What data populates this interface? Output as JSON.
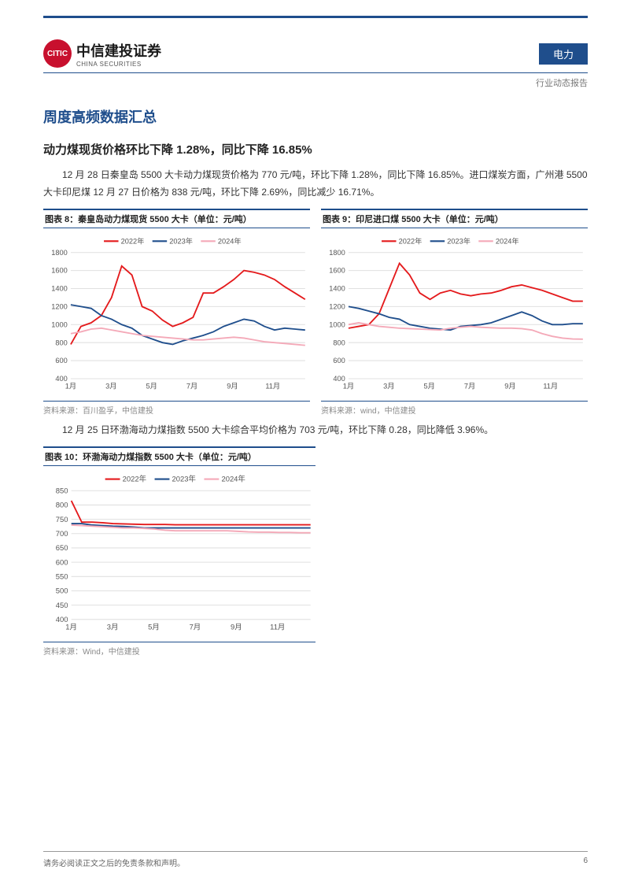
{
  "header": {
    "company_cn": "中信建投证券",
    "company_en": "CHINA SECURITIES",
    "category": "电力",
    "doc_type": "行业动态报告"
  },
  "section_title": "周度高频数据汇总",
  "sub_title": "动力煤现货价格环比下降 1.28%，同比下降 16.85%",
  "para1": "12 月 28 日秦皇岛 5500 大卡动力煤现货价格为 770 元/吨，环比下降 1.28%，同比下降 16.85%。进口煤炭方面，广州港 5500 大卡印尼煤 12 月 27 日价格为 838 元/吨，环比下降 2.69%，同比减少 16.71%。",
  "para2": "12 月 25 日环渤海动力煤指数 5500 大卡综合平均价格为 703 元/吨，环比下降 0.28，同比降低 3.96%。",
  "legend_labels": [
    "2022年",
    "2023年",
    "2024年"
  ],
  "colors": {
    "y2022": "#e41a1c",
    "y2023": "#1f4e8c",
    "y2024": "#f4a9b8",
    "grid": "#e0e0e0",
    "axis": "#555555",
    "chart_border": "#1f4e8c"
  },
  "x_labels": [
    "1月",
    "3月",
    "5月",
    "7月",
    "9月",
    "11月"
  ],
  "chart8": {
    "caption": "图表 8：秦皇岛动力煤现货 5500 大卡（单位：元/吨）",
    "source": "资料来源：百川盈孚，中信建投",
    "type": "line",
    "ylim": [
      400,
      1800
    ],
    "ytick_step": 200,
    "y2022": [
      780,
      980,
      1020,
      1100,
      1300,
      1650,
      1550,
      1200,
      1150,
      1050,
      980,
      1020,
      1080,
      1350,
      1350,
      1420,
      1500,
      1600,
      1580,
      1550,
      1500,
      1420,
      1350,
      1280
    ],
    "y2023": [
      1220,
      1200,
      1180,
      1100,
      1060,
      1000,
      960,
      880,
      840,
      800,
      780,
      820,
      850,
      880,
      920,
      980,
      1020,
      1060,
      1040,
      980,
      940,
      960,
      950,
      940
    ],
    "y2024": [
      900,
      920,
      950,
      960,
      940,
      920,
      900,
      880,
      870,
      860,
      850,
      840,
      830,
      830,
      840,
      850,
      860,
      850,
      830,
      810,
      800,
      790,
      780,
      770
    ]
  },
  "chart9": {
    "caption": "图表 9：印尼进口煤 5500 大卡（单位：元/吨）",
    "source": "资料来源：wind，中信建投",
    "type": "line",
    "ylim": [
      400,
      1800
    ],
    "ytick_step": 200,
    "y2022": [
      960,
      980,
      1000,
      1120,
      1400,
      1680,
      1550,
      1350,
      1280,
      1350,
      1380,
      1340,
      1320,
      1340,
      1350,
      1380,
      1420,
      1440,
      1410,
      1380,
      1340,
      1300,
      1260,
      1260
    ],
    "y2023": [
      1200,
      1180,
      1150,
      1120,
      1080,
      1060,
      1000,
      980,
      960,
      950,
      940,
      980,
      990,
      1000,
      1020,
      1060,
      1100,
      1140,
      1100,
      1040,
      1000,
      1000,
      1010,
      1010
    ],
    "y2024": [
      1000,
      1020,
      1000,
      980,
      970,
      960,
      955,
      950,
      945,
      940,
      960,
      970,
      980,
      970,
      965,
      960,
      960,
      955,
      940,
      900,
      870,
      850,
      840,
      838
    ]
  },
  "chart10": {
    "caption": "图表 10：环渤海动力煤指数 5500 大卡（单位：元/吨）",
    "source": "资料来源：Wind，中信建投",
    "type": "line",
    "ylim": [
      400,
      850
    ],
    "ytick_step": 50,
    "y2022": [
      815,
      740,
      740,
      738,
      735,
      734,
      733,
      732,
      732,
      732,
      731,
      731,
      731,
      731,
      731,
      731,
      731,
      731,
      731,
      731,
      731,
      731,
      731,
      731
    ],
    "y2023": [
      735,
      735,
      730,
      728,
      726,
      725,
      723,
      720,
      720,
      720,
      720,
      720,
      720,
      720,
      720,
      720,
      720,
      720,
      720,
      720,
      720,
      720,
      720,
      720
    ],
    "y2024": [
      730,
      728,
      726,
      724,
      722,
      720,
      720,
      718,
      716,
      712,
      710,
      710,
      710,
      710,
      710,
      710,
      708,
      706,
      705,
      705,
      704,
      704,
      703,
      703
    ]
  },
  "footer": {
    "disclaimer": "请务必阅读正文之后的免责条款和声明。",
    "page": "6"
  }
}
